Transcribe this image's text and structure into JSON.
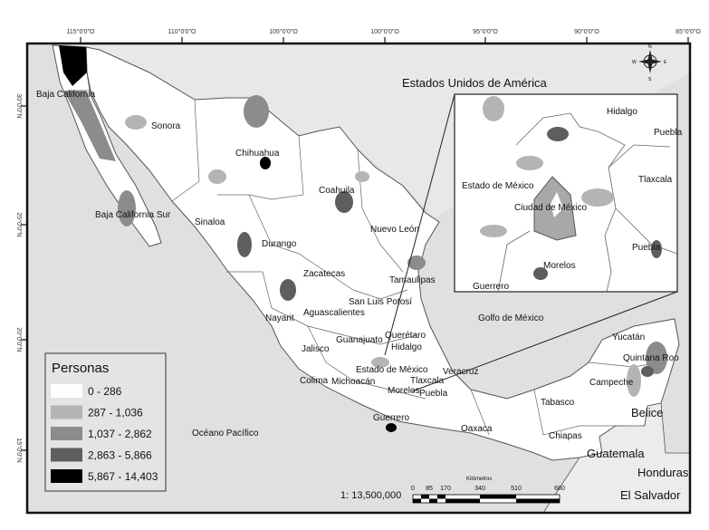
{
  "map": {
    "top_ticks": [
      "115°0'0\"O",
      "110°0'0\"O",
      "105°0'0\"O",
      "100°0'0\"O",
      "95°0'0\"O",
      "90°0'0\"O",
      "85°0'0\"O"
    ],
    "left_ticks": [
      "30°0'0\"N",
      "25°0'0\"N",
      "20°0'0\"N",
      "15°0'0\"N"
    ],
    "countries": {
      "usa": "Estados Unidos de América",
      "belize": "Belice",
      "guatemala": "Guatemala",
      "honduras": "Honduras",
      "el_salvador": "El Salvador"
    },
    "water": {
      "gulf": "Golfo de México",
      "pacific": "Océano Pacífico"
    },
    "states": [
      "Baja California",
      "Sonora",
      "Chihuahua",
      "Coahuila",
      "Baja California Sur",
      "Sinaloa",
      "Durango",
      "Nuevo León",
      "Zacatecas",
      "Tamaulipas",
      "San Luis Potosí",
      "Nayarit",
      "Aguascalientes",
      "Guanajuato",
      "Querétaro",
      "Hidalgo",
      "Jalisco",
      "Estado de México",
      "Michoacán",
      "Tlaxcala",
      "Veracruz",
      "Colima",
      "Morelos",
      "Puebla",
      "Guerrero",
      "Oaxaca",
      "Tabasco",
      "Campeche",
      "Yucatán",
      "Quintana Roo",
      "Chiapas"
    ],
    "inset_labels": [
      "Hidalgo",
      "Puebla",
      "Tlaxcala",
      "Estado de México",
      "Ciudad de México",
      "Morelos",
      "Puebla",
      "Guerrero"
    ],
    "compass": {
      "n": "N",
      "s": "S",
      "e": "E",
      "w": "W"
    }
  },
  "legend": {
    "title": "Personas",
    "items": [
      {
        "label": "0 - 286",
        "color": "#ffffff"
      },
      {
        "label": "287 - 1,036",
        "color": "#b4b4b4"
      },
      {
        "label": "1,037 - 2,862",
        "color": "#8c8c8c"
      },
      {
        "label": "2,863 - 5,866",
        "color": "#5e5e5e"
      },
      {
        "label": "5,867 - 14,403",
        "color": "#000000"
      }
    ]
  },
  "scale": {
    "ratio": "1: 13,500,000",
    "unit": "Kilómetros",
    "ticks": [
      "0",
      "85",
      "170",
      "340",
      "510",
      "680"
    ]
  }
}
